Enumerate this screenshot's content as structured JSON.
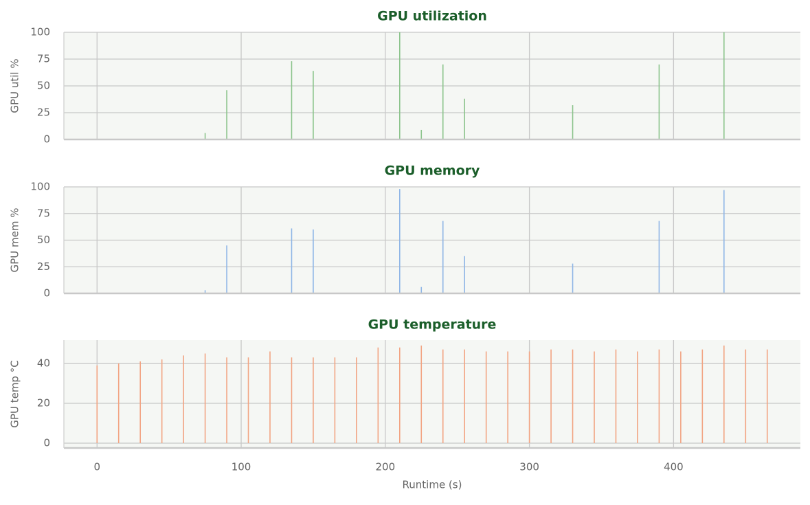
{
  "chart_data": [
    {
      "type": "bar",
      "title": "GPU utilization",
      "ylabel": "GPU util %",
      "color": "#8cc48c",
      "x": [
        0,
        15,
        30,
        45,
        60,
        75,
        90,
        105,
        120,
        135,
        150,
        165,
        180,
        195,
        210,
        225,
        240,
        255,
        270,
        285,
        300,
        315,
        330,
        345,
        360,
        375,
        390,
        405,
        420,
        435,
        450,
        465
      ],
      "values": [
        0,
        0,
        0,
        0,
        0,
        6,
        46,
        0,
        0,
        73,
        64,
        0,
        0,
        0,
        100,
        9,
        70,
        38,
        0,
        0,
        0,
        0,
        32,
        0,
        0,
        0,
        70,
        0,
        0,
        100,
        0,
        0
      ],
      "xlim": [
        -23,
        488
      ],
      "xticks": [
        0,
        100,
        200,
        300,
        400
      ],
      "ylim": [
        0,
        100
      ],
      "yticks": [
        0,
        25,
        50,
        75,
        100
      ],
      "grid": true
    },
    {
      "type": "bar",
      "title": "GPU memory",
      "ylabel": "GPU mem %",
      "color": "#8fb6e6",
      "x": [
        0,
        15,
        30,
        45,
        60,
        75,
        90,
        105,
        120,
        135,
        150,
        165,
        180,
        195,
        210,
        225,
        240,
        255,
        270,
        285,
        300,
        315,
        330,
        345,
        360,
        375,
        390,
        405,
        420,
        435,
        450,
        465
      ],
      "values": [
        0,
        0,
        0,
        0,
        0,
        3,
        45,
        0,
        0,
        61,
        60,
        0,
        0,
        0,
        98,
        6,
        68,
        35,
        0,
        0,
        0,
        0,
        28,
        0,
        0,
        0,
        68,
        0,
        0,
        97,
        0,
        0
      ],
      "xlim": [
        -23,
        488
      ],
      "xticks": [
        0,
        100,
        200,
        300,
        400
      ],
      "ylim": [
        0,
        100
      ],
      "yticks": [
        0,
        25,
        50,
        75,
        100
      ],
      "grid": true
    },
    {
      "type": "bar",
      "title": "GPU temperature",
      "ylabel": "GPU temp °C",
      "xlabel": "Runtime (s)",
      "color": "#f2a482",
      "x": [
        0,
        15,
        30,
        45,
        60,
        75,
        90,
        105,
        120,
        135,
        150,
        165,
        180,
        195,
        210,
        225,
        240,
        255,
        270,
        285,
        300,
        315,
        330,
        345,
        360,
        375,
        390,
        405,
        420,
        435,
        450,
        465
      ],
      "values": [
        39,
        40,
        41,
        42,
        44,
        45,
        43,
        43,
        46,
        43,
        43,
        43,
        43,
        48,
        48,
        49,
        47,
        47,
        46,
        46,
        46,
        47,
        47,
        46,
        47,
        46,
        47,
        46,
        47,
        49,
        47,
        47
      ],
      "xlim": [
        -23,
        488
      ],
      "xticks": [
        0,
        100,
        200,
        300,
        400
      ],
      "ylim": [
        -2.4,
        51.7
      ],
      "yticks": [
        0,
        20,
        40
      ],
      "grid": true,
      "show_xticklabels": true
    }
  ]
}
